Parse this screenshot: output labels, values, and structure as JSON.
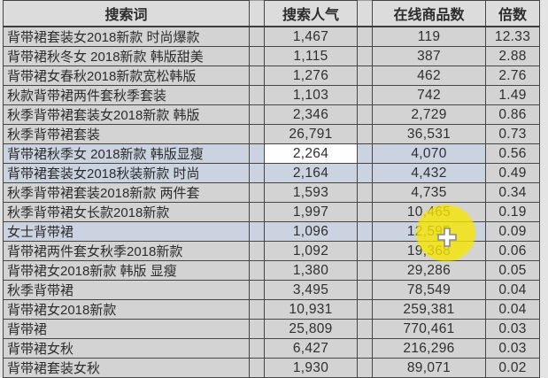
{
  "table": {
    "columns": [
      "搜索词",
      "搜索人气",
      "在线商品数",
      "倍数"
    ],
    "rows": [
      {
        "term": "背带裙套装女2018新款 时尚爆款",
        "popularity": "1,467",
        "products": "119",
        "ratio": "12.33",
        "selected": false,
        "active_cell": null
      },
      {
        "term": "背带裙秋冬女 2018新款 韩版甜美",
        "popularity": "1,115",
        "products": "387",
        "ratio": "2.88",
        "selected": false,
        "active_cell": null
      },
      {
        "term": "背带裙女春秋2018新款宽松韩版",
        "popularity": "1,276",
        "products": "462",
        "ratio": "2.76",
        "selected": false,
        "active_cell": null
      },
      {
        "term": "秋款背带裙两件套秋季套装",
        "popularity": "1,103",
        "products": "742",
        "ratio": "1.49",
        "selected": false,
        "active_cell": null
      },
      {
        "term": "秋季背带裙套装女2018新款 韩版",
        "popularity": "2,346",
        "products": "2,729",
        "ratio": "0.86",
        "selected": false,
        "active_cell": null
      },
      {
        "term": "秋季背带裙套装",
        "popularity": "26,791",
        "products": "36,531",
        "ratio": "0.73",
        "selected": false,
        "active_cell": null
      },
      {
        "term": "背带裙秋季女 2018新款 韩版显瘦",
        "popularity": "2,264",
        "products": "4,070",
        "ratio": "0.56",
        "selected": true,
        "active_cell": "popularity"
      },
      {
        "term": "背带裙套装女2018秋装新款 时尚",
        "popularity": "2,164",
        "products": "4,432",
        "ratio": "0.49",
        "selected": true,
        "active_cell": null
      },
      {
        "term": "秋季背带裙套装2018新款 两件套",
        "popularity": "1,593",
        "products": "4,735",
        "ratio": "0.34",
        "selected": false,
        "active_cell": null
      },
      {
        "term": "秋季背带裙女长款2018新款",
        "popularity": "1,997",
        "products": "10,465",
        "ratio": "0.19",
        "selected": false,
        "active_cell": null
      },
      {
        "term": "女士背带裙",
        "popularity": "1,096",
        "products": "12,595",
        "ratio": "0.09",
        "selected": true,
        "active_cell": null
      },
      {
        "term": "背带裙两件套女秋季2018新款",
        "popularity": "1,092",
        "products": "19,368",
        "ratio": "0.06",
        "selected": false,
        "active_cell": null
      },
      {
        "term": "背带裙女2018新款 韩版 显瘦",
        "popularity": "1,380",
        "products": "29,286",
        "ratio": "0.05",
        "selected": false,
        "active_cell": null
      },
      {
        "term": "秋季背带裙",
        "popularity": "3,495",
        "products": "78,549",
        "ratio": "0.04",
        "selected": false,
        "active_cell": null
      },
      {
        "term": "背带裙女2018新款",
        "popularity": "10,931",
        "products": "259,381",
        "ratio": "0.04",
        "selected": false,
        "active_cell": null
      },
      {
        "term": "背带裙",
        "popularity": "25,809",
        "products": "770,461",
        "ratio": "0.03",
        "selected": false,
        "active_cell": null
      },
      {
        "term": "背带裙女秋",
        "popularity": "6,427",
        "products": "216,296",
        "ratio": "0.03",
        "selected": false,
        "active_cell": null
      },
      {
        "term": "背带裙套装女秋",
        "popularity": "1,930",
        "products": "89,071",
        "ratio": "0.02",
        "selected": false,
        "active_cell": null
      }
    ]
  },
  "cursor": {
    "type": "excel-plus-cursor",
    "highlight_shape": "yellow-circle",
    "highlight_color": "#f8e602"
  },
  "colors": {
    "row_bg": "#d3d3d3",
    "selected_row_bg": "#cbd2e0",
    "active_cell_bg": "#fefefe",
    "header_bg": "#dcdcdc",
    "grid_border": "#454545",
    "page_bg": "#e4e4e4"
  }
}
